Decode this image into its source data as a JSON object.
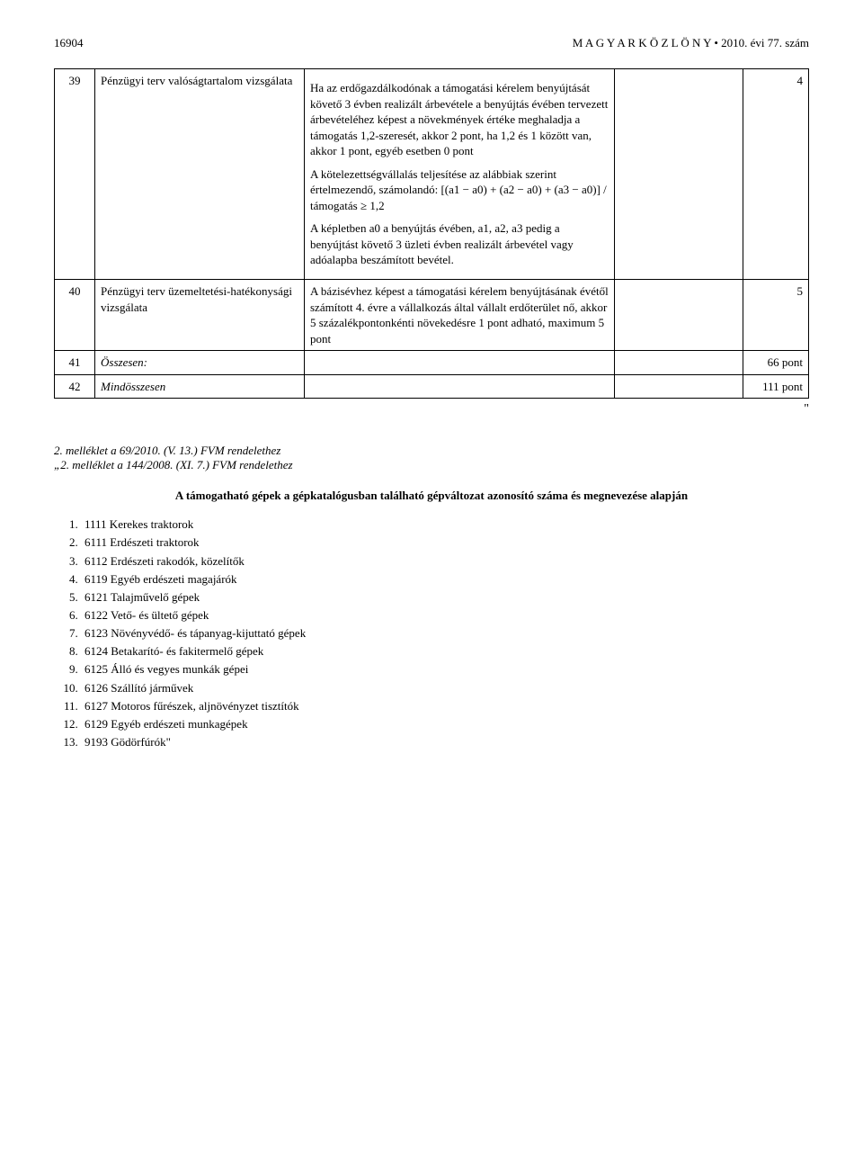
{
  "header": {
    "page_number": "16904",
    "journal": "M A G Y A R   K Ö Z L Ö N Y",
    "issue": "• 2010. évi 77. szám"
  },
  "table": {
    "rows": [
      {
        "num": "39",
        "name": "Pénzügyi terv valóságtartalom vizsgálata",
        "desc": "Ha az erdőgazdálkodónak a támogatási kérelem benyújtását követő 3 évben realizált árbevétele a benyújtás évében tervezett árbevételéhez képest a növekmények értéke meghaladja a támogatás 1,2-szeresét, akkor 2 pont, ha 1,2 és 1 között van, akkor 1 pont, egyéb esetben 0 pont",
        "desc2": "A kötelezettségvállalás teljesítése az alábbiak szerint értelmezendő, számolandó: [(a1 − a0) + (a2 − a0) + (a3 − a0)] / támogatás ≥ 1,2",
        "desc3": "A képletben a0 a benyújtás évében, a1, a2, a3 pedig a benyújtást követő 3 üzleti évben realizált árbevétel vagy adóalapba beszámított bevétel.",
        "points": "4"
      },
      {
        "num": "40",
        "name": "Pénzügyi terv üzemeltetési-hatékonysági vizsgálata",
        "desc": "A bázisévhez képest a támogatási kérelem benyújtásának évétől számított 4. évre a vállalkozás által vállalt erdőterület nő, akkor 5 százalékpontonkénti növekedésre 1 pont adható, maximum 5 pont",
        "points": "5"
      },
      {
        "num": "41",
        "name": "Összesen:",
        "points": "66 pont"
      },
      {
        "num": "42",
        "name": "Mindösszesen",
        "points": "111 pont"
      }
    ]
  },
  "closing_quote": "\"",
  "attachment": {
    "line1": "2. melléklet a 69/2010. (V. 13.) FVM rendelethez",
    "line2": "„2. melléklet a 144/2008. (XI. 7.) FVM rendelethez",
    "title": "A támogatható gépek a gépkatalógusban található gépváltozat azonosító száma és megnevezése alapján",
    "items": [
      "1111 Kerekes traktorok",
      "6111 Erdészeti traktorok",
      "6112 Erdészeti rakodók, közelítők",
      "6119 Egyéb erdészeti magajárók",
      "6121 Talajművelő gépek",
      "6122 Vető- és ültető gépek",
      "6123 Növényvédő- és tápanyag-kijuttató gépek",
      "6124 Betakarító- és fakitermelő gépek",
      "6125 Álló és vegyes munkák gépei",
      "6126 Szállító járművek",
      "6127 Motoros fűrészek, aljnövényzet tisztítók",
      "6129 Egyéb erdészeti munkagépek",
      "9193 Gödörfúrók\""
    ]
  }
}
